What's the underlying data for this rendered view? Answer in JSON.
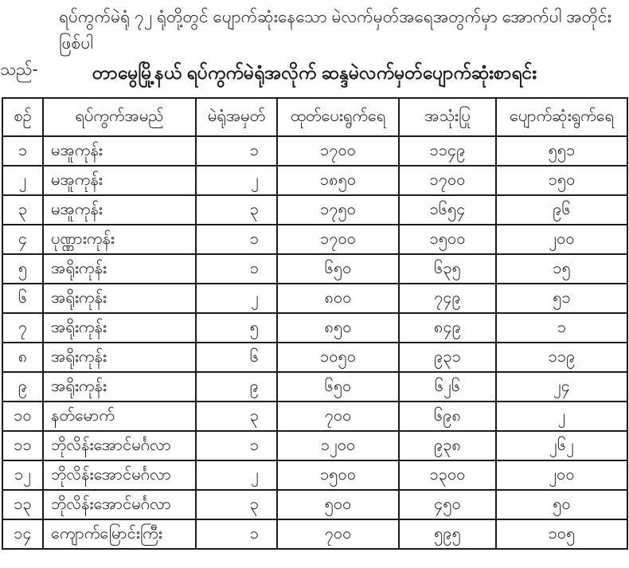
{
  "document": {
    "intro_lines": [
      "ရပ်ကွက်မဲရုံ ၇၂ ရုံတို့တွင် ပျောက်ဆုံးနေသော မဲလက်မှတ်အရေအတွက်မှာ အောက်ပါ အတိုင်းဖြစ်ပါ",
      "သည်-"
    ],
    "title": "တာမွေမြို့နယ် ရပ်ကွက်မဲရုံအလိုက် ဆန္ဒမဲလက်မှတ်ပျောက်ဆုံးစာရင်း"
  },
  "table": {
    "headers": [
      "စဉ်",
      "ရပ်ကွက်အမည်",
      "မဲရုံအမှတ်",
      "ထုတ်ပေးရွက်ရေ",
      "အသုံးပြု",
      "ပျောက်ဆုံးရွက်ရေ"
    ],
    "column_semantics": [
      "serial-cell",
      "ward-name-cell",
      "station-number-cell",
      "issued-count-cell",
      "used-count-cell",
      "lost-count-cell"
    ],
    "rows": [
      [
        "၁",
        "မအူကုန်း",
        "၁",
        "၁၇၀၀",
        "၁၁၄၉",
        "၅၅၁"
      ],
      [
        "၂",
        "မအူကုန်း",
        "၂",
        "၁၈၅၀",
        "၁၇၀၀",
        "၁၅၀"
      ],
      [
        "၃",
        "မအူကုန်း",
        "၃",
        "၁၇၅၀",
        "၁၆၅၄",
        "၉၆"
      ],
      [
        "၄",
        "ပုဏ္ဏားကုန်း",
        "၁",
        "၁၇၀၀",
        "၁၅၀၀",
        "၂၀၀"
      ],
      [
        "၅",
        "အရိုးကုန်း",
        "၁",
        "၆၅၀",
        "၆၃၅",
        "၁၅"
      ],
      [
        "၆",
        "အရိုးကုန်း",
        "၂",
        "၈၀၀",
        "၇၄၉",
        "၅၁"
      ],
      [
        "၇",
        "အရိုးကုန်း",
        "၅",
        "၈၅၀",
        "၈၄၉",
        "၁"
      ],
      [
        "၈",
        "အရိုးကုန်း",
        "၆",
        "၁၀၅၀",
        "၉၃၁",
        "၁၁၉"
      ],
      [
        "၉",
        "အရိုးကုန်း",
        "၉",
        "၆၅၀",
        "၆၂၆",
        "၂၄"
      ],
      [
        "၁၀",
        "နတ်မောက်",
        "၃",
        "၇၀၀",
        "၆၉၈",
        "၂"
      ],
      [
        "၁၁",
        "ဘိုလိန်းအောင်မင်္ဂလာ",
        "၁",
        "၁၂၀၀",
        "၉၃၈",
        "၂၆၂"
      ],
      [
        "၁၂",
        "ဘိုလိန်းအောင်မင်္ဂလာ",
        "၂",
        "၁၅၀၀",
        "၁၃၀၀",
        "၂၀၀"
      ],
      [
        "၁၃",
        "ဘိုလိန်းအောင်မင်္ဂလာ",
        "၃",
        "၅၀၀",
        "၄၅၀",
        "၅၀"
      ],
      [
        "၁၄",
        "ကျောက်မြောင်းကြီး",
        "၁",
        "၇၀၀",
        "၅၉၅",
        "၁၀၅"
      ]
    ]
  },
  "colors": {
    "background": "#ffffff",
    "text": "#1e1e1e",
    "border": "#1c1c1c"
  }
}
